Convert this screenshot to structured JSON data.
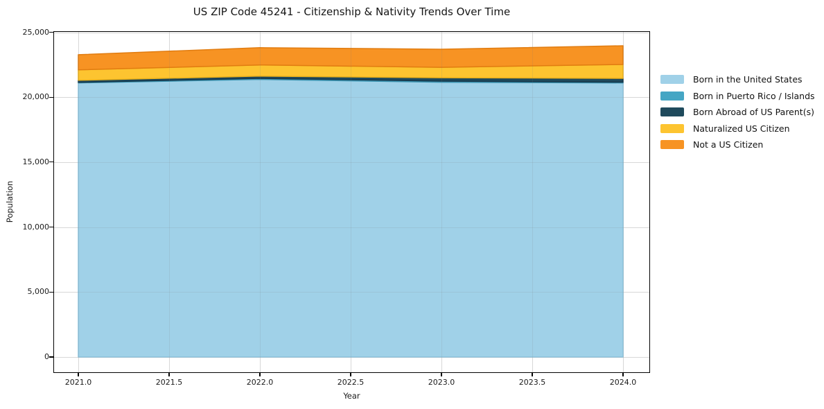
{
  "chart_data": {
    "type": "area",
    "stacked": true,
    "title": "US ZIP Code 45241 - Citizenship & Nativity Trends Over Time",
    "xlabel": "Year",
    "ylabel": "Population",
    "x": [
      2021,
      2022,
      2023,
      2024
    ],
    "series": [
      {
        "name": "Born in the United States",
        "color": "#a0d1e8",
        "edge": "#8cc4de",
        "values": [
          21100,
          21370,
          21150,
          21100
        ]
      },
      {
        "name": "Born in Puerto Rico / Islands",
        "color": "#45a6c4",
        "edge": "#3a93b0",
        "values": [
          40,
          80,
          90,
          60
        ]
      },
      {
        "name": "Born Abroad of US Parent(s)",
        "color": "#1f4a5c",
        "edge": "#16374a",
        "values": [
          160,
          170,
          260,
          290
        ]
      },
      {
        "name": "Naturalized US Citizen",
        "color": "#fdc430",
        "edge": "#ecb11a",
        "values": [
          800,
          860,
          800,
          1070
        ]
      },
      {
        "name": "Not a US Citizen",
        "color": "#f79323",
        "edge": "#e17c10",
        "values": [
          1170,
          1330,
          1390,
          1440
        ]
      }
    ],
    "x_ticks": {
      "labels": [
        "2021.0",
        "2021.5",
        "2022.0",
        "2022.5",
        "2023.0",
        "2023.5",
        "2024.0"
      ],
      "values": [
        2021.0,
        2021.5,
        2022.0,
        2022.5,
        2023.0,
        2023.5,
        2024.0
      ]
    },
    "y_ticks": {
      "labels": [
        "0",
        "5,000",
        "10,000",
        "15,000",
        "20,000",
        "25,000"
      ],
      "values": [
        0,
        5000,
        10000,
        15000,
        20000,
        25000
      ]
    },
    "xlim": [
      2020.86,
      2024.15
    ],
    "ylim": [
      -1230,
      25180
    ],
    "grid": true,
    "legend_position": "right-outside",
    "frame_color": "#000000",
    "grid_color": "#e7e7e7",
    "background_color": "#ffffff"
  }
}
